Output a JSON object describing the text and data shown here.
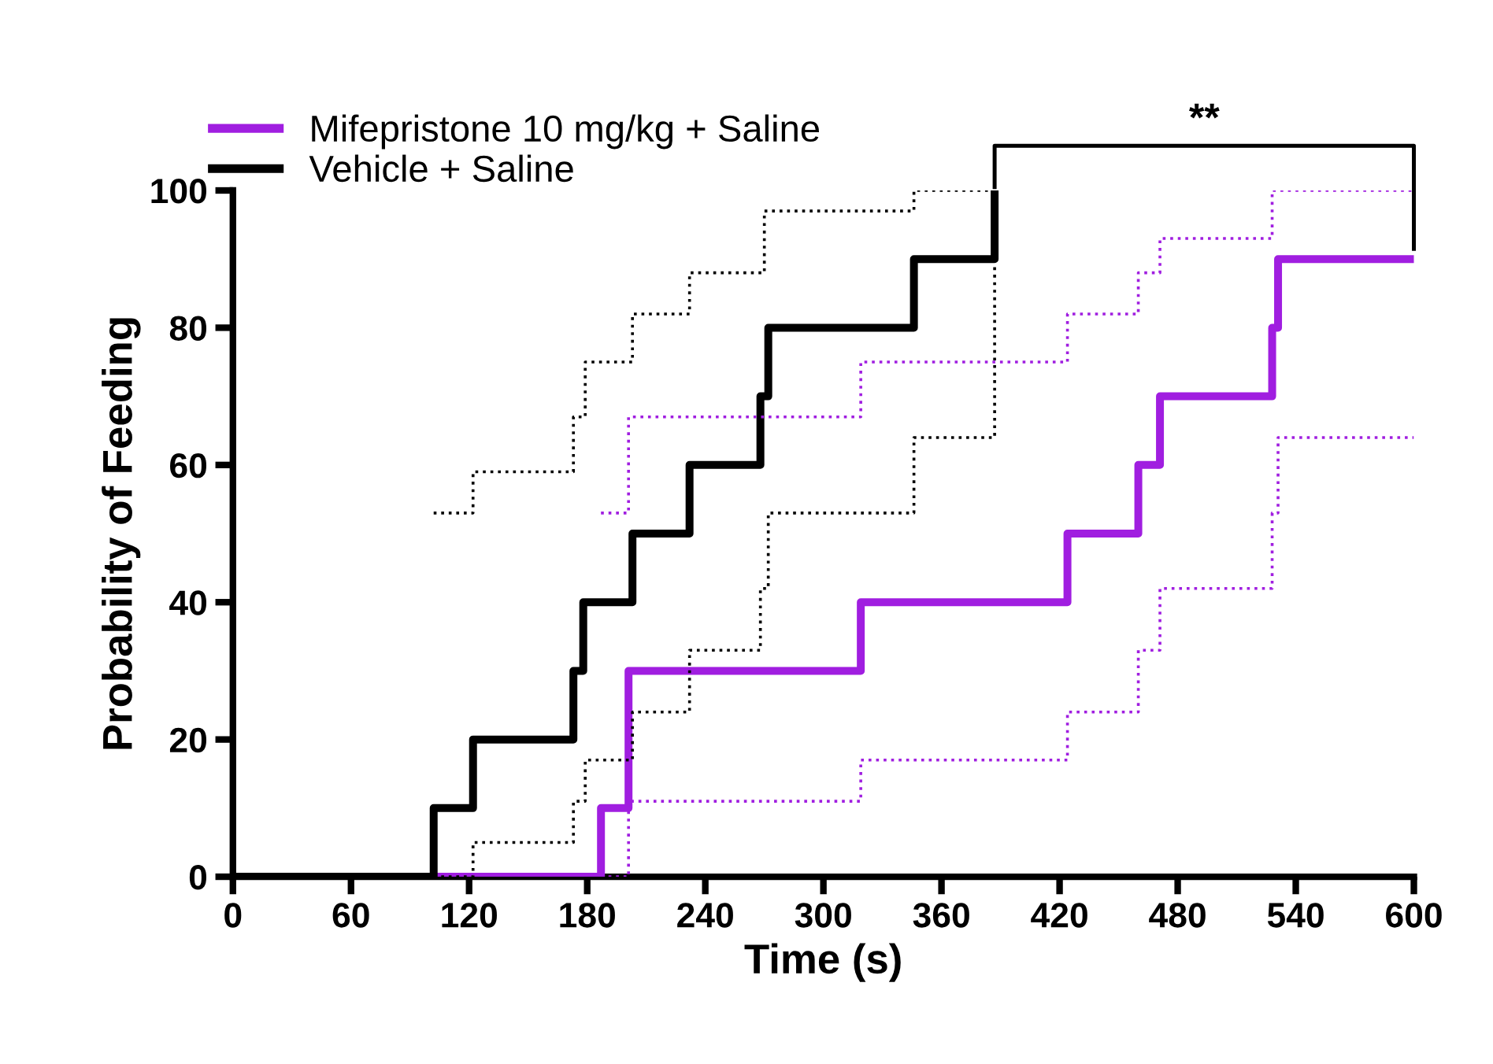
{
  "chart_data": {
    "type": "step",
    "xlabel": "Time (s)",
    "ylabel": "Probability of Feeding",
    "xlim": [
      0,
      600
    ],
    "xticks": [
      0,
      60,
      120,
      180,
      240,
      300,
      360,
      420,
      480,
      540,
      600
    ],
    "ylim": [
      0,
      100
    ],
    "yticks": [
      0,
      20,
      40,
      60,
      80,
      100
    ],
    "grid": false,
    "legend": "top left",
    "line_style": "solid",
    "marker": "none",
    "annotations": [
      "**"
    ],
    "series": [
      {
        "name": "Mifepristone 10 mg/kg + Saline",
        "color": "#a01ee0",
        "x": [
          102,
          187,
          201,
          319,
          424,
          460,
          471,
          528,
          531,
          600
        ],
        "values": [
          0,
          10,
          30,
          40,
          50,
          60,
          70,
          80,
          90,
          90
        ]
      },
      {
        "name": "Vehicle + Saline",
        "color": "#000000",
        "x": [
          0,
          102,
          122,
          173,
          178,
          203,
          232,
          268,
          272,
          346,
          387
        ],
        "values": [
          0,
          10,
          20,
          30,
          40,
          50,
          60,
          70,
          80,
          90,
          100
        ]
      },
      {
        "color": "#a01ee0",
        "line_style": "dotted",
        "x": [
          187,
          201,
          319,
          424,
          460,
          471,
          528,
          600
        ],
        "values": [
          53,
          67,
          75,
          82,
          88,
          93,
          100,
          100
        ]
      },
      {
        "color": "#a01ee0",
        "line_style": "dotted",
        "x": [
          187,
          201,
          319,
          424,
          460,
          471,
          528,
          531,
          600
        ],
        "values": [
          0,
          11,
          17,
          24,
          33,
          42,
          53,
          64,
          64
        ]
      },
      {
        "color": "#000000",
        "line_style": "dotted",
        "x": [
          102,
          122,
          173,
          179,
          203,
          232,
          270,
          346,
          387
        ],
        "values": [
          53,
          59,
          67,
          75,
          82,
          88,
          97,
          100,
          100
        ]
      },
      {
        "color": "#000000",
        "line_style": "dotted",
        "x": [
          102,
          122,
          173,
          179,
          203,
          232,
          268,
          272,
          346,
          387
        ],
        "values": [
          0,
          5,
          11,
          17,
          24,
          33,
          42,
          53,
          64,
          100
        ]
      }
    ]
  }
}
